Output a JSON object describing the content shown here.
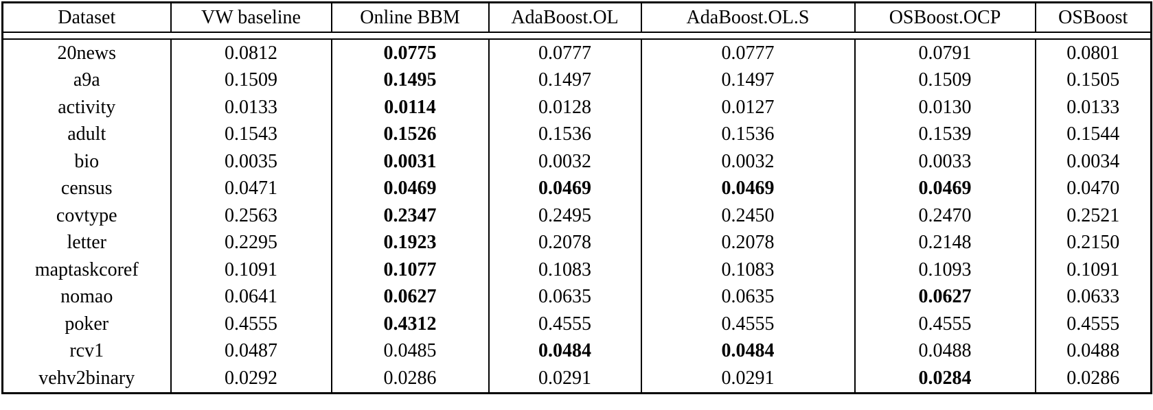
{
  "table": {
    "columns": [
      "Dataset",
      "VW baseline",
      "Online BBM",
      "AdaBoost.OL",
      "AdaBoost.OL.S",
      "OSBoost.OCP",
      "OSBoost"
    ],
    "rows": [
      {
        "dataset": "20news",
        "values": [
          "0.0812",
          "0.0775",
          "0.0777",
          "0.0777",
          "0.0791",
          "0.0801"
        ],
        "bold": [
          false,
          true,
          false,
          false,
          false,
          false
        ]
      },
      {
        "dataset": "a9a",
        "values": [
          "0.1509",
          "0.1495",
          "0.1497",
          "0.1497",
          "0.1509",
          "0.1505"
        ],
        "bold": [
          false,
          true,
          false,
          false,
          false,
          false
        ]
      },
      {
        "dataset": "activity",
        "values": [
          "0.0133",
          "0.0114",
          "0.0128",
          "0.0127",
          "0.0130",
          "0.0133"
        ],
        "bold": [
          false,
          true,
          false,
          false,
          false,
          false
        ]
      },
      {
        "dataset": "adult",
        "values": [
          "0.1543",
          "0.1526",
          "0.1536",
          "0.1536",
          "0.1539",
          "0.1544"
        ],
        "bold": [
          false,
          true,
          false,
          false,
          false,
          false
        ]
      },
      {
        "dataset": "bio",
        "values": [
          "0.0035",
          "0.0031",
          "0.0032",
          "0.0032",
          "0.0033",
          "0.0034"
        ],
        "bold": [
          false,
          true,
          false,
          false,
          false,
          false
        ]
      },
      {
        "dataset": "census",
        "values": [
          "0.0471",
          "0.0469",
          "0.0469",
          "0.0469",
          "0.0469",
          "0.0470"
        ],
        "bold": [
          false,
          true,
          true,
          true,
          true,
          false
        ]
      },
      {
        "dataset": "covtype",
        "values": [
          "0.2563",
          "0.2347",
          "0.2495",
          "0.2450",
          "0.2470",
          "0.2521"
        ],
        "bold": [
          false,
          true,
          false,
          false,
          false,
          false
        ]
      },
      {
        "dataset": "letter",
        "values": [
          "0.2295",
          "0.1923",
          "0.2078",
          "0.2078",
          "0.2148",
          "0.2150"
        ],
        "bold": [
          false,
          true,
          false,
          false,
          false,
          false
        ]
      },
      {
        "dataset": "maptaskcoref",
        "values": [
          "0.1091",
          "0.1077",
          "0.1083",
          "0.1083",
          "0.1093",
          "0.1091"
        ],
        "bold": [
          false,
          true,
          false,
          false,
          false,
          false
        ]
      },
      {
        "dataset": "nomao",
        "values": [
          "0.0641",
          "0.0627",
          "0.0635",
          "0.0635",
          "0.0627",
          "0.0633"
        ],
        "bold": [
          false,
          true,
          false,
          false,
          true,
          false
        ]
      },
      {
        "dataset": "poker",
        "values": [
          "0.4555",
          "0.4312",
          "0.4555",
          "0.4555",
          "0.4555",
          "0.4555"
        ],
        "bold": [
          false,
          true,
          false,
          false,
          false,
          false
        ]
      },
      {
        "dataset": "rcv1",
        "values": [
          "0.0487",
          "0.0485",
          "0.0484",
          "0.0484",
          "0.0488",
          "0.0488"
        ],
        "bold": [
          false,
          false,
          true,
          true,
          false,
          false
        ]
      },
      {
        "dataset": "vehv2binary",
        "values": [
          "0.0292",
          "0.0286",
          "0.0291",
          "0.0291",
          "0.0284",
          "0.0286"
        ],
        "bold": [
          false,
          false,
          false,
          false,
          true,
          false
        ]
      }
    ]
  },
  "chart_data": {
    "type": "table",
    "title": "",
    "columns": [
      "Dataset",
      "VW baseline",
      "Online BBM",
      "AdaBoost.OL",
      "AdaBoost.OL.S",
      "OSBoost.OCP",
      "OSBoost"
    ],
    "bold_means": "best (lowest) error rate per dataset row",
    "rows": [
      [
        "20news",
        0.0812,
        0.0775,
        0.0777,
        0.0777,
        0.0791,
        0.0801
      ],
      [
        "a9a",
        0.1509,
        0.1495,
        0.1497,
        0.1497,
        0.1509,
        0.1505
      ],
      [
        "activity",
        0.0133,
        0.0114,
        0.0128,
        0.0127,
        0.013,
        0.0133
      ],
      [
        "adult",
        0.1543,
        0.1526,
        0.1536,
        0.1536,
        0.1539,
        0.1544
      ],
      [
        "bio",
        0.0035,
        0.0031,
        0.0032,
        0.0032,
        0.0033,
        0.0034
      ],
      [
        "census",
        0.0471,
        0.0469,
        0.0469,
        0.0469,
        0.0469,
        0.047
      ],
      [
        "covtype",
        0.2563,
        0.2347,
        0.2495,
        0.245,
        0.247,
        0.2521
      ],
      [
        "letter",
        0.2295,
        0.1923,
        0.2078,
        0.2078,
        0.2148,
        0.215
      ],
      [
        "maptaskcoref",
        0.1091,
        0.1077,
        0.1083,
        0.1083,
        0.1093,
        0.1091
      ],
      [
        "nomao",
        0.0641,
        0.0627,
        0.0635,
        0.0635,
        0.0627,
        0.0633
      ],
      [
        "poker",
        0.4555,
        0.4312,
        0.4555,
        0.4555,
        0.4555,
        0.4555
      ],
      [
        "rcv1",
        0.0487,
        0.0485,
        0.0484,
        0.0484,
        0.0488,
        0.0488
      ],
      [
        "vehv2binary",
        0.0292,
        0.0286,
        0.0291,
        0.0291,
        0.0284,
        0.0286
      ]
    ]
  }
}
